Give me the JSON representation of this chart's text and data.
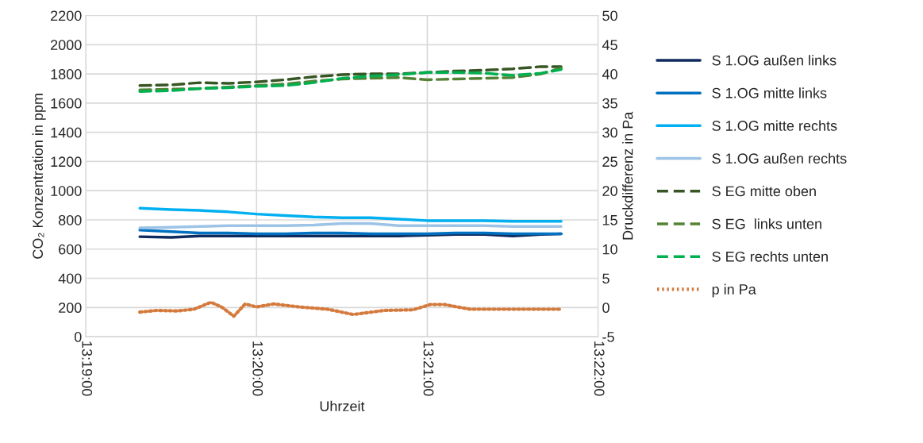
{
  "chart_data": {
    "type": "line",
    "xlabel": "Uhrzeit",
    "ylabel": "CO₂ Konzentration in ppm",
    "y2label": "Druckdifferenz in Pa",
    "x": [
      13.32194,
      13.325,
      13.32778,
      13.33056,
      13.33333,
      13.33611,
      13.33889,
      13.34167,
      13.34444,
      13.34722,
      13.35,
      13.35278,
      13.35556,
      13.35833,
      13.36111,
      13.36306
    ],
    "xlim": [
      13.31667,
      13.36667
    ],
    "xticks": [
      {
        "value": 13.31667,
        "label": "13:19:00"
      },
      {
        "value": 13.33333,
        "label": "13:20:00"
      },
      {
        "value": 13.35,
        "label": "13:21:00"
      },
      {
        "value": 13.36667,
        "label": "13:22:00"
      }
    ],
    "ylim": [
      0,
      2200
    ],
    "yticks": [
      0,
      200,
      400,
      600,
      800,
      1000,
      1200,
      1400,
      1600,
      1800,
      2000,
      2200
    ],
    "y2lim": [
      -5,
      50
    ],
    "y2ticks": [
      -5,
      0,
      5,
      10,
      15,
      20,
      25,
      30,
      35,
      40,
      45,
      50
    ],
    "grid": true,
    "legend": "right",
    "series": [
      {
        "name": "S 1.OG außen links",
        "color": "#0f2a5c",
        "line_style": "solid",
        "values": [
          685,
          680,
          690,
          690,
          690,
          690,
          690,
          690,
          690,
          690,
          695,
          700,
          700,
          690,
          700,
          705
        ]
      },
      {
        "name": "S 1.OG mitte links",
        "color": "#0070c0",
        "line_style": "solid",
        "values": [
          730,
          720,
          710,
          710,
          705,
          705,
          710,
          710,
          705,
          705,
          705,
          710,
          710,
          705,
          705,
          705
        ]
      },
      {
        "name": "S 1.OG mitte rechts",
        "color": "#00b0f0",
        "line_style": "solid",
        "values": [
          880,
          870,
          865,
          855,
          840,
          830,
          820,
          815,
          815,
          805,
          795,
          795,
          795,
          790,
          790,
          790
        ]
      },
      {
        "name": "S 1.OG außen rechts",
        "color": "#9dc3e6",
        "line_style": "solid",
        "values": [
          745,
          750,
          755,
          760,
          760,
          760,
          765,
          775,
          775,
          760,
          760,
          760,
          760,
          755,
          755,
          755
        ]
      },
      {
        "name": "S EG mitte oben",
        "color": "#375623",
        "line_style": "dashed",
        "values": [
          1720,
          1725,
          1740,
          1735,
          1745,
          1760,
          1780,
          1795,
          1800,
          1800,
          1810,
          1820,
          1825,
          1835,
          1850,
          1850
        ]
      },
      {
        "name": "S EG  links unten",
        "color": "#548235",
        "line_style": "dashed",
        "values": [
          1690,
          1695,
          1700,
          1710,
          1720,
          1730,
          1750,
          1765,
          1770,
          1775,
          1760,
          1765,
          1770,
          1775,
          1800,
          1840
        ]
      },
      {
        "name": "S EG rechts unten",
        "color": "#00b050",
        "line_style": "dashed",
        "values": [
          1680,
          1685,
          1700,
          1705,
          1715,
          1720,
          1740,
          1770,
          1785,
          1795,
          1810,
          1810,
          1805,
          1790,
          1805,
          1830
        ]
      },
      {
        "name": "p in Pa",
        "color": "#d47a3c",
        "line_style": "dotted",
        "axis": "y2",
        "x": [
          13.32194,
          13.32361,
          13.32556,
          13.32722,
          13.32889,
          13.33,
          13.33111,
          13.33222,
          13.33333,
          13.335,
          13.3375,
          13.34028,
          13.34278,
          13.34583,
          13.34861,
          13.35028,
          13.35167,
          13.35417,
          13.36306
        ],
        "values": [
          -0.8,
          -0.5,
          -0.6,
          -0.3,
          0.9,
          0,
          -1.5,
          0.6,
          0.1,
          0.6,
          0.1,
          -0.3,
          -1.2,
          -0.5,
          -0.4,
          0.5,
          0.5,
          -0.3,
          -0.3
        ]
      }
    ]
  }
}
